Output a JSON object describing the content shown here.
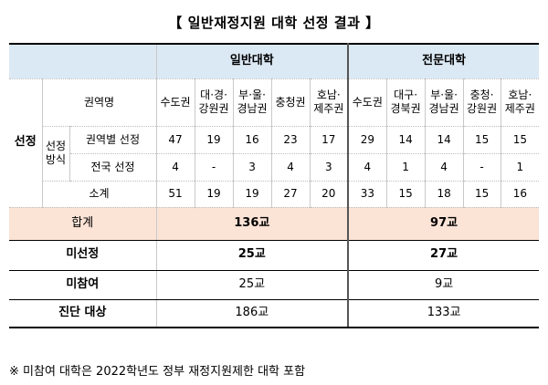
{
  "title": "【 일반재정지원 대학 선정 결과 】",
  "headers": {
    "general": "일반대학",
    "vocational": "전문대학"
  },
  "labels": {
    "region_name": "권역명",
    "selection": "선정",
    "method": "선정\n방식",
    "by_region": "권역별 선정",
    "national": "전국 선정",
    "subtotal": "소계",
    "total": "합계",
    "not_selected": "미선정",
    "not_participated": "미참여",
    "diagnosed": "진단 대상"
  },
  "regions": [
    "수도권",
    "대·경·\n강원권",
    "부·울·\n경남권",
    "충청권",
    "호남·\n제주권",
    "수도권",
    "대구·\n경북권",
    "부·울·\n경남권",
    "충청·\n강원권",
    "호남·\n제주권"
  ],
  "by_region": [
    "47",
    "19",
    "16",
    "23",
    "17",
    "29",
    "14",
    "14",
    "15",
    "15"
  ],
  "national": [
    "4",
    "-",
    "3",
    "4",
    "3",
    "4",
    "1",
    "4",
    "-",
    "1"
  ],
  "subtotal": [
    "51",
    "19",
    "19",
    "27",
    "20",
    "33",
    "15",
    "18",
    "15",
    "16"
  ],
  "totals": {
    "general_total": "136교",
    "vocational_total": "97교",
    "general_not_selected": "25교",
    "vocational_not_selected": "27교",
    "general_not_participated": "25교",
    "vocational_not_participated": "9교",
    "general_diagnosed": "186교",
    "vocational_diagnosed": "133교"
  },
  "note": "※ 미참여 대학은 2022학년도 정부 재정지원제한 대학 포함"
}
